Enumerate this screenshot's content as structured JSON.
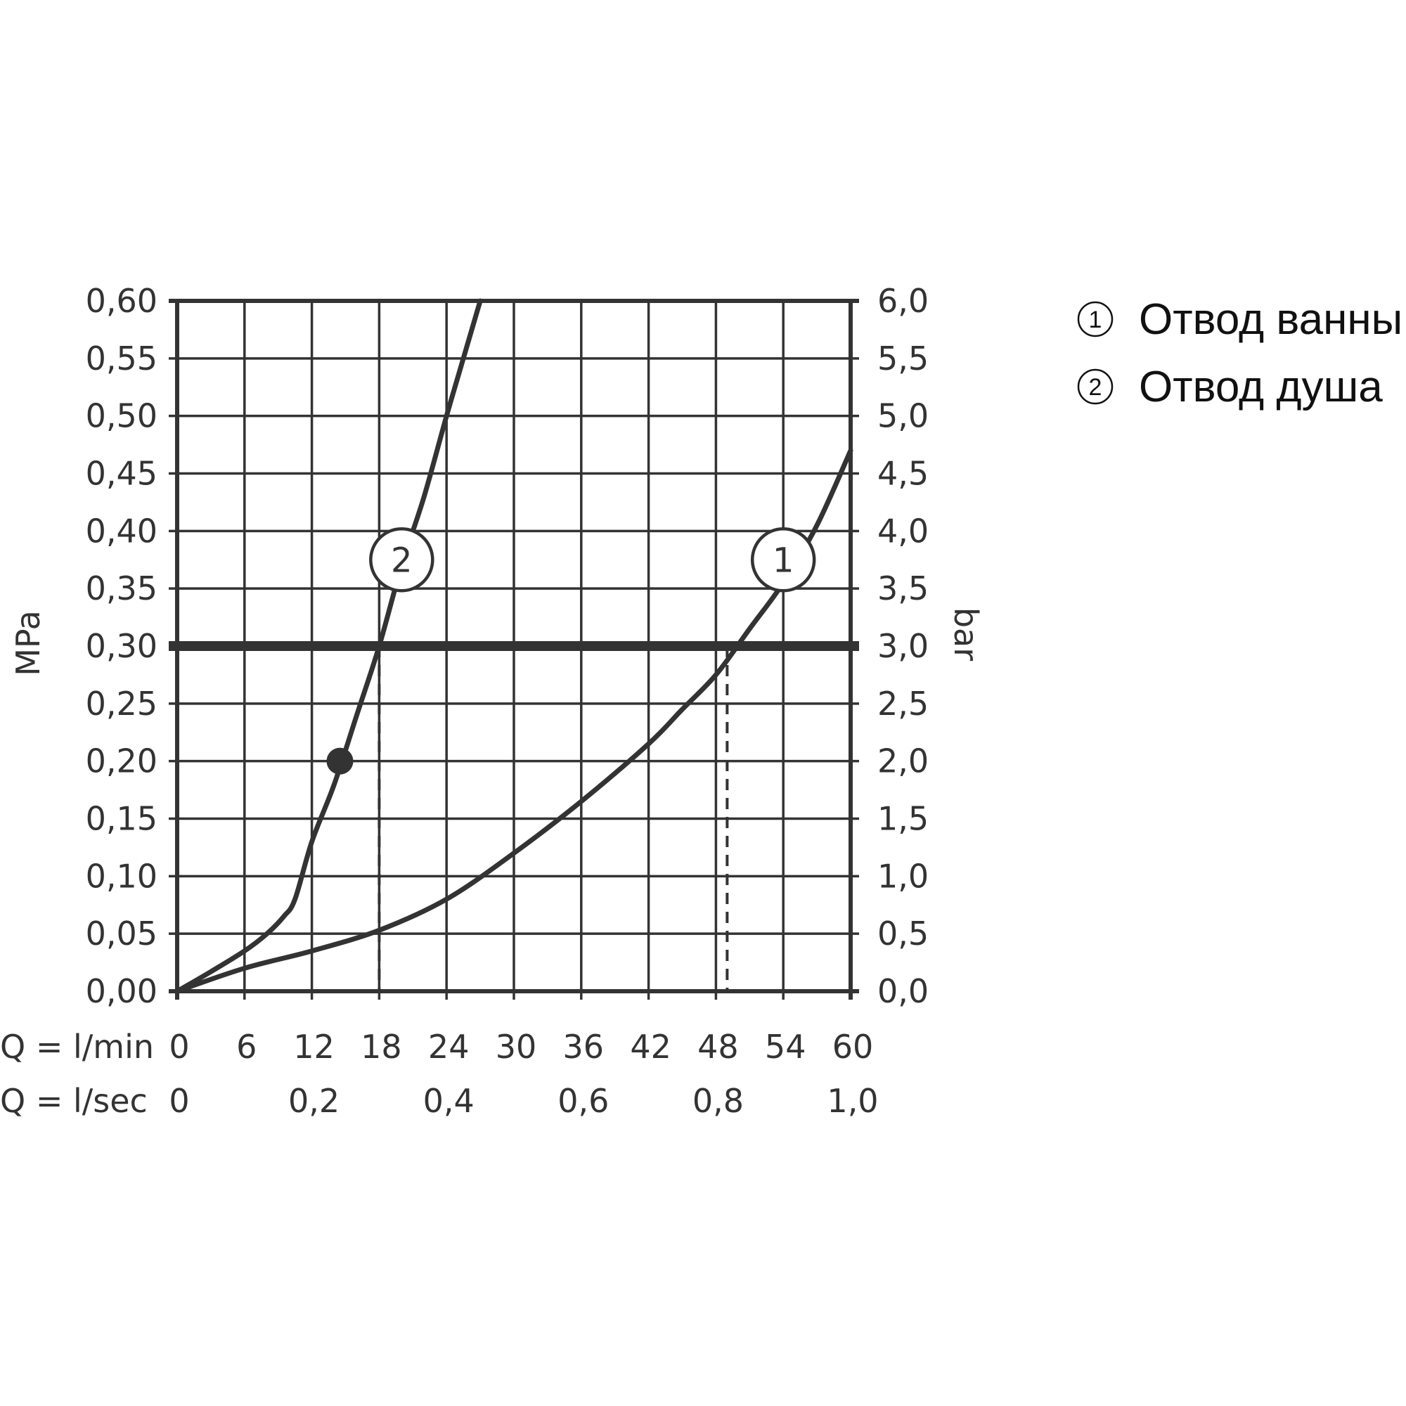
{
  "chart_data": {
    "type": "line",
    "x_axis": {
      "label_lmin": "Q = l/min",
      "label_lsec": "Q = l/sec",
      "range": [
        0,
        60
      ],
      "ticks_lmin": [
        "0",
        "6",
        "12",
        "18",
        "24",
        "30",
        "36",
        "42",
        "48",
        "54",
        "60"
      ],
      "ticks_lsec": [
        {
          "value": 0,
          "label": "0"
        },
        {
          "value": 12,
          "label": "0,2"
        },
        {
          "value": 24,
          "label": "0,4"
        },
        {
          "value": 36,
          "label": "0,6"
        },
        {
          "value": 48,
          "label": "0,8"
        },
        {
          "value": 60,
          "label": "1,0"
        }
      ]
    },
    "y_left": {
      "label": "MPa",
      "range": [
        0,
        0.6
      ],
      "ticks": [
        "0,00",
        "0,05",
        "0,10",
        "0,15",
        "0,20",
        "0,25",
        "0,30",
        "0,35",
        "0,40",
        "0,45",
        "0,50",
        "0,55",
        "0,60"
      ]
    },
    "y_right": {
      "label": "bar",
      "range": [
        0,
        6.0
      ],
      "ticks": [
        "0,0",
        "0,5",
        "1,0",
        "1,5",
        "2,0",
        "2,5",
        "3,0",
        "3,5",
        "4,0",
        "4,5",
        "5,0",
        "5,5",
        "6,0"
      ]
    },
    "grid": true,
    "reference_line_mpa": 0.3,
    "series": [
      {
        "id": "1",
        "marker_label": "1",
        "x": [
          0,
          6,
          12,
          18,
          24,
          30,
          36,
          42,
          45,
          48,
          51,
          54,
          57,
          60
        ],
        "y": [
          0,
          0.02,
          0.035,
          0.053,
          0.08,
          0.12,
          0.165,
          0.215,
          0.245,
          0.275,
          0.315,
          0.355,
          0.405,
          0.47
        ]
      },
      {
        "id": "2",
        "marker_label": "2",
        "x": [
          0,
          3,
          6,
          8,
          9.5,
          10.5,
          12,
          14,
          16,
          18,
          20,
          22,
          24,
          25.5,
          27
        ],
        "y": [
          0,
          0.017,
          0.035,
          0.05,
          0.065,
          0.08,
          0.13,
          0.18,
          0.24,
          0.3,
          0.37,
          0.43,
          0.5,
          0.55,
          0.6
        ]
      }
    ],
    "dashed_drops": [
      {
        "series": "2",
        "x": 18,
        "y": 0.3
      },
      {
        "series": "1",
        "x": 49,
        "y": 0.3
      }
    ],
    "point_marker": {
      "x": 14.5,
      "y": 0.2
    },
    "label_circles": [
      {
        "series": "2",
        "text": "2",
        "x": 20,
        "y": 0.375
      },
      {
        "series": "1",
        "text": "1",
        "x": 54,
        "y": 0.375
      }
    ],
    "colors": {
      "curve": "#333333",
      "grid": "#333333",
      "text": "#333333"
    }
  },
  "legend": {
    "items": [
      {
        "num": "1",
        "text": "Отвод ванны"
      },
      {
        "num": "2",
        "text": "Отвод душа"
      }
    ]
  }
}
